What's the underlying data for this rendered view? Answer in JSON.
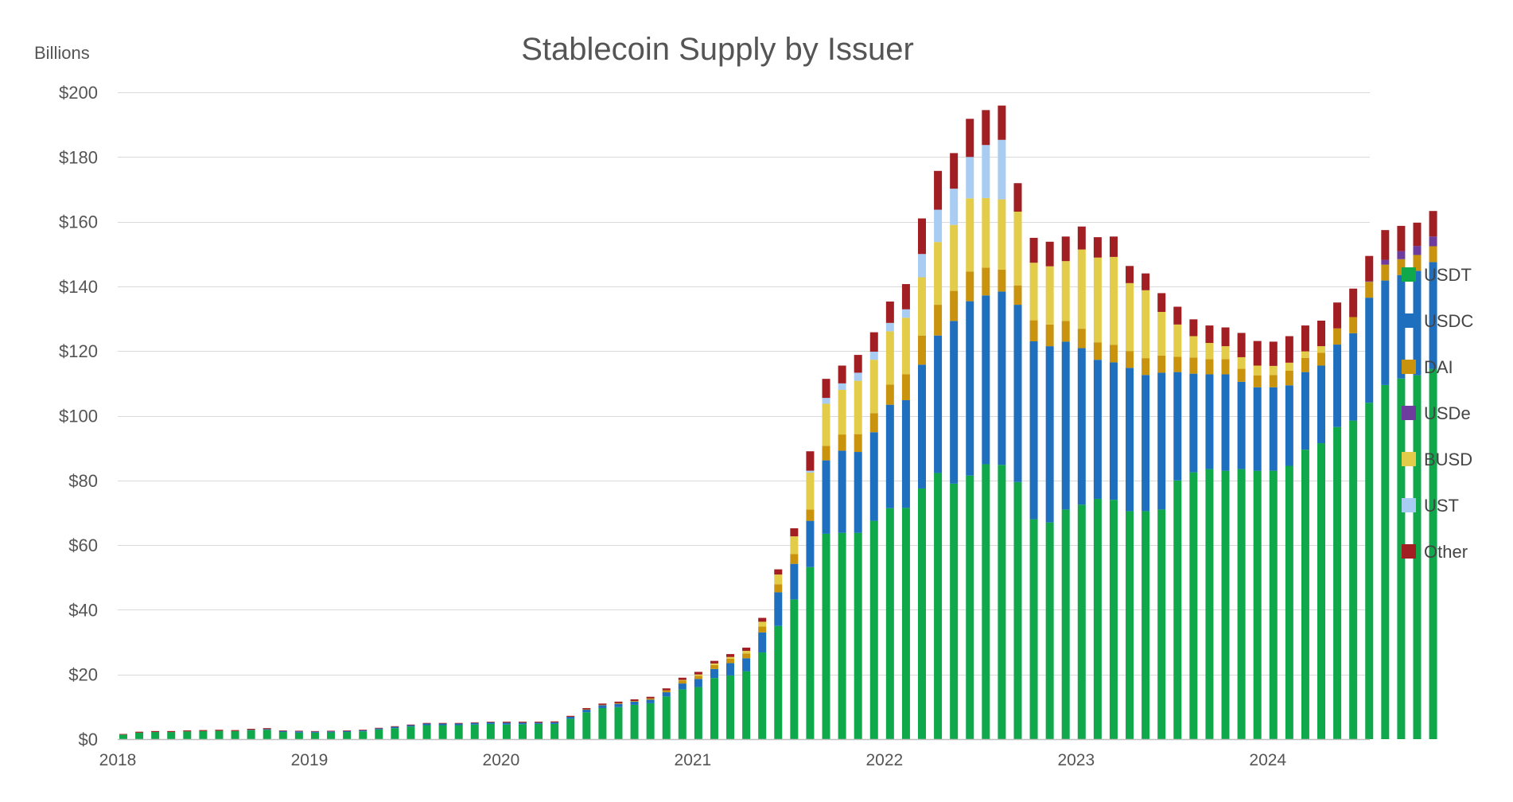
{
  "chart_data": {
    "type": "stacked-bar",
    "title": "Stablecoin Supply by Issuer",
    "ylabel": "Billions",
    "ylim": [
      0,
      200
    ],
    "yticks": [
      0,
      20,
      40,
      60,
      80,
      100,
      120,
      140,
      160,
      180,
      200
    ],
    "ytick_labels": [
      "$0",
      "$20",
      "$40",
      "$60",
      "$80",
      "$100",
      "$120",
      "$140",
      "$160",
      "$180",
      "$200"
    ],
    "xtick_labels": [
      "2018",
      "2019",
      "2020",
      "2021",
      "2022",
      "2023",
      "2024"
    ],
    "x_start": "2018-01",
    "x_interval": "monthly",
    "legend_position": "right",
    "series": [
      {
        "name": "USDT",
        "color": "#0fa84a",
        "values": [
          1.4,
          2.0,
          2.2,
          2.2,
          2.4,
          2.5,
          2.6,
          2.5,
          2.8,
          2.9,
          2.2,
          2.0,
          2.0,
          2.1,
          2.2,
          2.4,
          3.0,
          3.4,
          3.9,
          4.3,
          4.3,
          4.3,
          4.5,
          4.7,
          4.5,
          4.6,
          4.7,
          4.7,
          6.3,
          8.3,
          9.6,
          9.9,
          10.6,
          11.1,
          13.2,
          15.4,
          16.1,
          18.9,
          19.7,
          21.0,
          26.8,
          35.0,
          43.2,
          53.2,
          63.5,
          63.8,
          63.8,
          67.5,
          71.4,
          71.5,
          77.5,
          82.3,
          79.0,
          81.5,
          85.0,
          84.8,
          79.5,
          68.0,
          67.0,
          71.0,
          72.5,
          74.3,
          74.0,
          70.5,
          70.5,
          71.0,
          80.0,
          82.5,
          83.5,
          83.0,
          83.5,
          83.0,
          83.0,
          84.5,
          89.5,
          91.5,
          96.5,
          98.5,
          104.0,
          109.5,
          111.5,
          112.5,
          114.5
        ]
      },
      {
        "name": "USDC",
        "color": "#1f6fbf",
        "values": [
          0,
          0,
          0,
          0,
          0,
          0,
          0,
          0,
          0.1,
          0.2,
          0.3,
          0.4,
          0.3,
          0.3,
          0.3,
          0.3,
          0.3,
          0.4,
          0.4,
          0.5,
          0.5,
          0.5,
          0.5,
          0.5,
          0.6,
          0.5,
          0.4,
          0.5,
          0.6,
          0.8,
          0.9,
          1.0,
          1.0,
          1.1,
          1.3,
          1.8,
          2.5,
          2.8,
          3.8,
          4.0,
          6.2,
          10.4,
          11.0,
          14.3,
          22.7,
          25.4,
          25.0,
          27.4,
          32.0,
          33.3,
          38.3,
          42.5,
          50.3,
          53.9,
          52.2,
          53.6,
          54.8,
          55.0,
          54.5,
          51.9,
          48.4,
          43.0,
          42.5,
          44.3,
          42.1,
          42.3,
          33.5,
          30.5,
          29.3,
          29.8,
          27.0,
          25.8,
          25.8,
          24.9,
          24.0,
          24.0,
          25.5,
          27.0,
          32.5,
          32.3,
          32.0,
          32.3,
          33.0
        ]
      },
      {
        "name": "DAI",
        "color": "#c9930d",
        "values": [
          0,
          0,
          0,
          0,
          0,
          0,
          0,
          0,
          0,
          0,
          0,
          0,
          0,
          0,
          0,
          0,
          0,
          0,
          0,
          0,
          0,
          0,
          0,
          0,
          0,
          0,
          0,
          0,
          0,
          0.1,
          0.1,
          0.2,
          0.2,
          0.4,
          0.6,
          0.9,
          1.0,
          1.2,
          1.4,
          1.5,
          1.8,
          2.5,
          3.0,
          3.5,
          4.5,
          5.0,
          5.5,
          5.9,
          6.2,
          8.0,
          9.0,
          9.5,
          9.3,
          9.2,
          8.6,
          6.8,
          6.0,
          6.5,
          6.7,
          6.4,
          6.0,
          5.4,
          5.4,
          5.2,
          5.2,
          5.3,
          4.7,
          5.0,
          4.7,
          4.7,
          4.0,
          3.7,
          3.8,
          4.5,
          4.4,
          4.0,
          5.0,
          5.0,
          4.9,
          4.9,
          4.9,
          4.9,
          4.9
        ]
      },
      {
        "name": "USDe",
        "color": "#6e3c9e",
        "values": [
          0,
          0,
          0,
          0,
          0,
          0,
          0,
          0,
          0,
          0,
          0,
          0,
          0,
          0,
          0,
          0,
          0,
          0,
          0,
          0,
          0,
          0,
          0,
          0,
          0,
          0,
          0,
          0,
          0,
          0,
          0,
          0,
          0,
          0,
          0,
          0,
          0,
          0,
          0,
          0,
          0,
          0,
          0,
          0,
          0,
          0,
          0,
          0,
          0,
          0,
          0,
          0,
          0,
          0,
          0,
          0,
          0,
          0,
          0,
          0,
          0,
          0,
          0,
          0,
          0,
          0,
          0,
          0,
          0,
          0,
          0,
          0,
          0,
          0,
          0,
          0,
          0,
          0,
          0.2,
          1.5,
          2.5,
          2.8,
          3.0
        ]
      },
      {
        "name": "BUSD",
        "color": "#e2cc49",
        "values": [
          0,
          0,
          0,
          0,
          0,
          0,
          0,
          0,
          0,
          0,
          0,
          0,
          0,
          0,
          0,
          0,
          0,
          0,
          0,
          0,
          0,
          0,
          0,
          0,
          0,
          0,
          0,
          0,
          0,
          0,
          0,
          0,
          0,
          0,
          0,
          0.2,
          0.4,
          0.5,
          0.5,
          0.8,
          1.5,
          3.0,
          5.5,
          11.4,
          13.0,
          13.8,
          16.5,
          16.5,
          16.5,
          17.5,
          18.0,
          19.4,
          20.4,
          22.6,
          21.5,
          21.7,
          22.8,
          17.8,
          18.0,
          18.5,
          24.5,
          26.2,
          27.2,
          21.0,
          21.0,
          13.5,
          10.0,
          6.6,
          5.0,
          4.0,
          3.6,
          3.0,
          2.8,
          2.5,
          2.0,
          2.0,
          0,
          0,
          0,
          0,
          0,
          0,
          0
        ]
      },
      {
        "name": "UST",
        "color": "#a9cdf2",
        "values": [
          0,
          0,
          0,
          0,
          0,
          0,
          0,
          0,
          0,
          0,
          0,
          0,
          0,
          0,
          0,
          0,
          0,
          0,
          0,
          0,
          0,
          0,
          0,
          0,
          0,
          0,
          0,
          0,
          0,
          0,
          0,
          0,
          0,
          0,
          0,
          0,
          0,
          0,
          0,
          0,
          0,
          0,
          0,
          0.6,
          1.8,
          2.0,
          2.5,
          2.5,
          2.6,
          2.6,
          7.2,
          10.0,
          11.2,
          12.8,
          16.4,
          18.4,
          0,
          0,
          0,
          0,
          0,
          0,
          0,
          0,
          0,
          0,
          0,
          0,
          0,
          0,
          0,
          0,
          0,
          0,
          0,
          0,
          0,
          0,
          0,
          0,
          0,
          0,
          0
        ]
      },
      {
        "name": "Other",
        "color": "#a11e22",
        "values": [
          0.2,
          0.3,
          0.3,
          0.3,
          0.3,
          0.3,
          0.3,
          0.3,
          0.3,
          0.3,
          0.2,
          0.2,
          0.2,
          0.2,
          0.2,
          0.2,
          0.2,
          0.2,
          0.2,
          0.2,
          0.2,
          0.2,
          0.2,
          0.2,
          0.3,
          0.3,
          0.3,
          0.3,
          0.3,
          0.4,
          0.4,
          0.5,
          0.5,
          0.5,
          0.6,
          0.7,
          0.8,
          0.8,
          0.9,
          1.0,
          1.2,
          1.6,
          2.5,
          6.0,
          5.9,
          5.5,
          5.5,
          6.0,
          6.6,
          7.8,
          11.0,
          12.0,
          11.0,
          11.8,
          10.8,
          10.6,
          8.8,
          7.7,
          7.6,
          7.6,
          7.1,
          6.3,
          6.3,
          5.3,
          5.2,
          5.8,
          5.5,
          5.2,
          5.4,
          5.8,
          7.5,
          7.6,
          7.5,
          8.2,
          8.0,
          7.9,
          8.0,
          8.8,
          7.8,
          9.2,
          7.8,
          7.2,
          7.9
        ]
      }
    ]
  }
}
